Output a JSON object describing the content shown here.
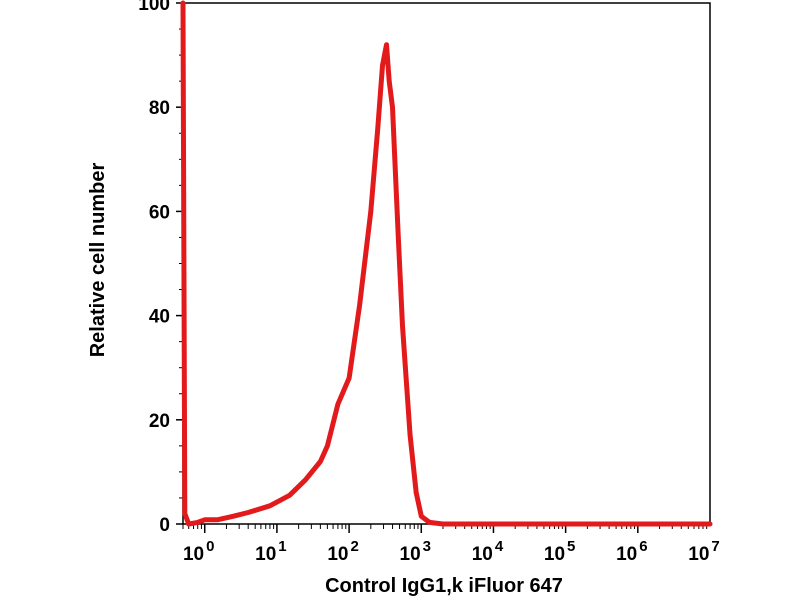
{
  "chart_data": {
    "type": "line",
    "title": "",
    "xlabel": "Control IgG1,k iFluor 647",
    "ylabel": "Relative cell number",
    "x_scale": "log",
    "xlim": [
      0.5,
      10000000
    ],
    "ylim": [
      0,
      100
    ],
    "grid": false,
    "legend": "none",
    "x_ticks": [
      {
        "value": 1,
        "base": "10",
        "exp": "0"
      },
      {
        "value": 10,
        "base": "10",
        "exp": "1"
      },
      {
        "value": 100,
        "base": "10",
        "exp": "2"
      },
      {
        "value": 1000,
        "base": "10",
        "exp": "3"
      },
      {
        "value": 10000,
        "base": "10",
        "exp": "4"
      },
      {
        "value": 100000,
        "base": "10",
        "exp": "5"
      },
      {
        "value": 1000000,
        "base": "10",
        "exp": "6"
      },
      {
        "value": 10000000,
        "base": "10",
        "exp": "7"
      }
    ],
    "y_ticks": [
      "0",
      "20",
      "40",
      "60",
      "80",
      "100"
    ],
    "series": [
      {
        "color": "#e31a1c",
        "points": [
          [
            0.5,
            100
          ],
          [
            0.53,
            2
          ],
          [
            0.6,
            0
          ],
          [
            0.8,
            0.3
          ],
          [
            1,
            0.8
          ],
          [
            1.5,
            0.8
          ],
          [
            2.5,
            1.5
          ],
          [
            4,
            2.2
          ],
          [
            8,
            3.5
          ],
          [
            15,
            5.5
          ],
          [
            25,
            8.5
          ],
          [
            40,
            12
          ],
          [
            50,
            15
          ],
          [
            70,
            23
          ],
          [
            100,
            28
          ],
          [
            140,
            42
          ],
          [
            200,
            60
          ],
          [
            250,
            76
          ],
          [
            290,
            88
          ],
          [
            330,
            92
          ],
          [
            360,
            85
          ],
          [
            400,
            80
          ],
          [
            480,
            55
          ],
          [
            550,
            38
          ],
          [
            700,
            17
          ],
          [
            850,
            6
          ],
          [
            1000,
            1.5
          ],
          [
            1300,
            0.3
          ],
          [
            2000,
            0
          ],
          [
            10000000,
            0
          ]
        ]
      }
    ]
  }
}
